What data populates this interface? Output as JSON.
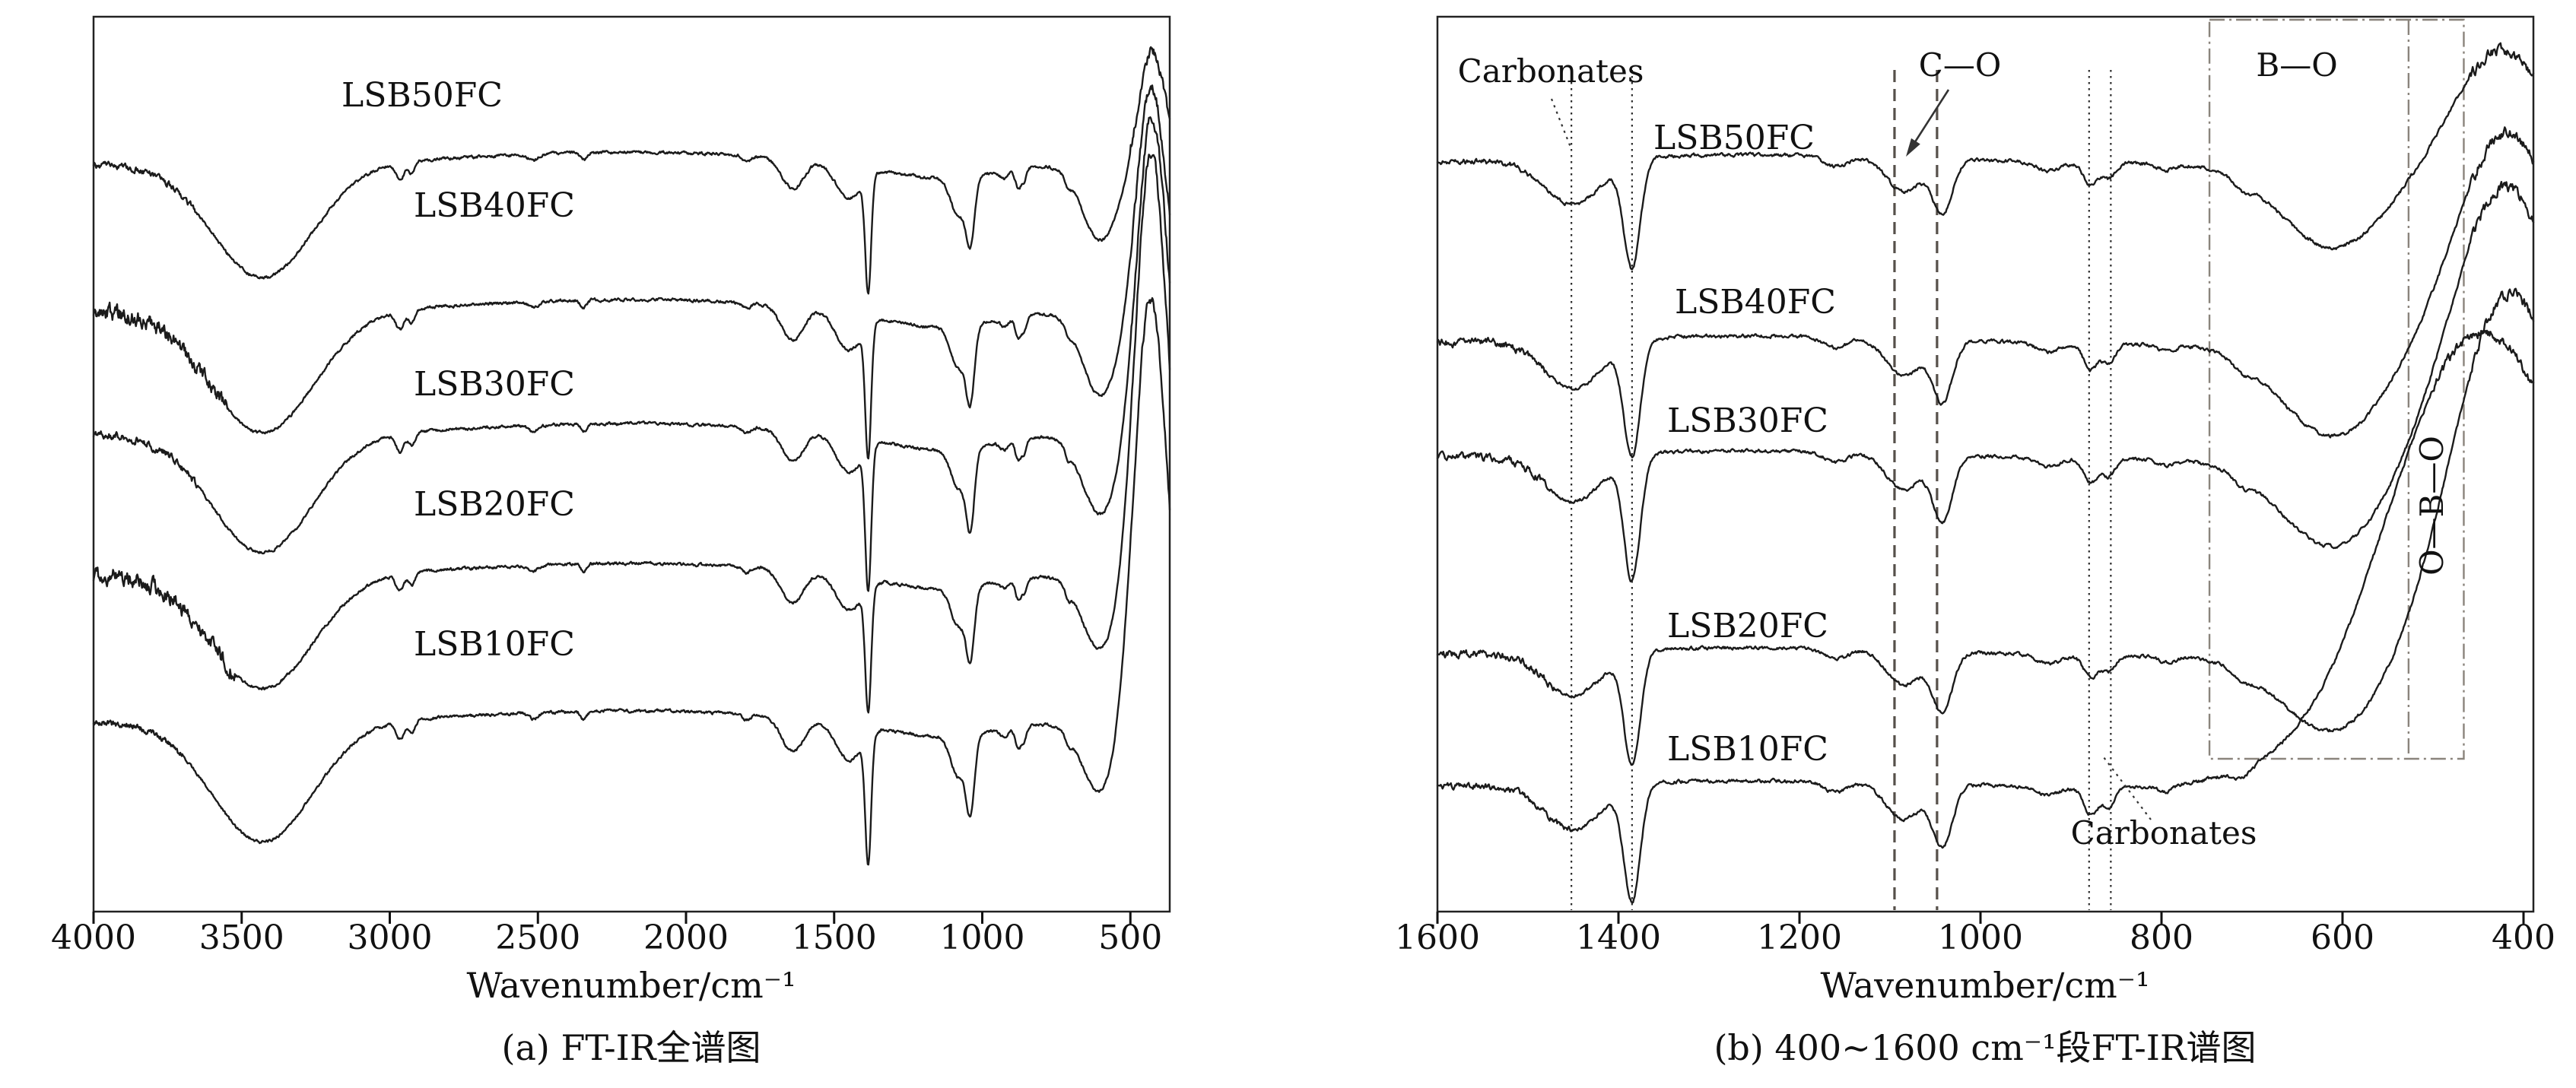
{
  "figure": {
    "background": "#ffffff",
    "line_color": "#1b1b1b",
    "description": "FT-IR transmittance spectra of LSB glass samples, five stacked curves per panel",
    "peak_format": "[center_wavenumber_cm-1, gaussian_width_cm-1, depth_display_units (positive = absorption dip downward, negative = upward rise)]"
  },
  "chart_data": [
    {
      "type": "line",
      "panel": "a",
      "caption": "(a) FT-IR全谱图",
      "xlabel": "Wavenumber/cm⁻¹",
      "x_ticks": [
        "4000",
        "3500",
        "3000",
        "2500",
        "2000",
        "1500",
        "1000",
        "500"
      ],
      "x_axis_range_cm1": [
        4000,
        370
      ],
      "y_axis": "Transmittance (arbitrary units, curves vertically offset, no y axis labels)",
      "grid": false,
      "legend": "labels placed above each curve",
      "series": [
        {
          "name": "LSB50FC",
          "seed": 1,
          "baseline": 216,
          "noise_base": 1.8,
          "noise_regions": [
            [
              4000,
              3650,
              4
            ],
            [
              500,
              368,
              7
            ]
          ],
          "peaks": [
            [
              3430,
              170,
              150
            ],
            [
              2965,
              14,
              22
            ],
            [
              2925,
              11,
              16
            ],
            [
              2515,
              16,
              8
            ],
            [
              2345,
              10,
              10
            ],
            [
              2200,
              500,
              -16
            ],
            [
              1795,
              14,
              8
            ],
            [
              1640,
              38,
              40
            ],
            [
              1450,
              45,
              45
            ],
            [
              1385,
              10,
              150
            ],
            [
              1150,
              180,
              20
            ],
            [
              1080,
              26,
              50
            ],
            [
              1040,
              14,
              80
            ],
            [
              925,
              15,
              10
            ],
            [
              878,
              10,
              26
            ],
            [
              858,
              8,
              16
            ],
            [
              710,
              10,
              12
            ],
            [
              600,
              62,
              100
            ],
            [
              428,
              45,
              -150
            ]
          ]
        },
        {
          "name": "LSB40FC",
          "seed": 2,
          "baseline": 410,
          "noise_base": 1.8,
          "noise_regions": [
            [
              4000,
              3550,
              10
            ],
            [
              500,
              368,
              7
            ]
          ],
          "peaks": [
            [
              3430,
              175,
              160
            ],
            [
              2965,
              14,
              24
            ],
            [
              2925,
              11,
              18
            ],
            [
              2515,
              16,
              8
            ],
            [
              2345,
              10,
              10
            ],
            [
              2200,
              500,
              -16
            ],
            [
              1795,
              14,
              8
            ],
            [
              1640,
              38,
              45
            ],
            [
              1450,
              45,
              50
            ],
            [
              1385,
              10,
              170
            ],
            [
              1150,
              180,
              22
            ],
            [
              1080,
              26,
              55
            ],
            [
              1040,
              14,
              90
            ],
            [
              925,
              15,
              10
            ],
            [
              878,
              10,
              28
            ],
            [
              858,
              8,
              18
            ],
            [
              710,
              10,
              12
            ],
            [
              600,
              62,
              110
            ],
            [
              430,
              48,
              -300
            ]
          ]
        },
        {
          "name": "LSB30FC",
          "seed": 3,
          "baseline": 572,
          "noise_base": 1.8,
          "noise_regions": [
            [
              4000,
              3650,
              5
            ],
            [
              500,
              368,
              7
            ]
          ],
          "peaks": [
            [
              3430,
              170,
              155
            ],
            [
              2965,
              14,
              23
            ],
            [
              2925,
              11,
              17
            ],
            [
              2515,
              16,
              8
            ],
            [
              2345,
              10,
              10
            ],
            [
              2200,
              500,
              -15
            ],
            [
              1795,
              14,
              8
            ],
            [
              1640,
              38,
              42
            ],
            [
              1450,
              45,
              48
            ],
            [
              1385,
              10,
              185
            ],
            [
              1150,
              180,
              21
            ],
            [
              1080,
              26,
              52
            ],
            [
              1040,
              14,
              95
            ],
            [
              925,
              15,
              10
            ],
            [
              878,
              10,
              27
            ],
            [
              858,
              8,
              17
            ],
            [
              710,
              10,
              12
            ],
            [
              600,
              62,
              105
            ],
            [
              428,
              50,
              -420
            ]
          ]
        },
        {
          "name": "LSB20FC",
          "seed": 4,
          "baseline": 756,
          "noise_base": 1.8,
          "noise_regions": [
            [
              4000,
              3520,
              10
            ],
            [
              500,
              368,
              7
            ]
          ],
          "peaks": [
            [
              3430,
              172,
              150
            ],
            [
              2965,
              14,
              22
            ],
            [
              2925,
              11,
              16
            ],
            [
              2515,
              16,
              8
            ],
            [
              2345,
              10,
              10
            ],
            [
              2200,
              500,
              -15
            ],
            [
              1795,
              14,
              8
            ],
            [
              1640,
              38,
              44
            ],
            [
              1450,
              45,
              46
            ],
            [
              1385,
              10,
              160
            ],
            [
              1150,
              180,
              20
            ],
            [
              1080,
              26,
              50
            ],
            [
              1040,
              14,
              85
            ],
            [
              925,
              15,
              10
            ],
            [
              878,
              10,
              26
            ],
            [
              858,
              8,
              16
            ],
            [
              710,
              10,
              12
            ],
            [
              600,
              62,
              100
            ],
            [
              430,
              52,
              -560
            ]
          ]
        },
        {
          "name": "LSB10FC",
          "seed": 5,
          "baseline": 950,
          "noise_base": 1.8,
          "noise_regions": [
            [
              4000,
              3700,
              4
            ],
            [
              500,
              368,
              7
            ]
          ],
          "peaks": [
            [
              3430,
              170,
              158
            ],
            [
              2965,
              14,
              23
            ],
            [
              2925,
              11,
              17
            ],
            [
              2515,
              16,
              8
            ],
            [
              2345,
              10,
              10
            ],
            [
              2200,
              500,
              -15
            ],
            [
              1795,
              14,
              8
            ],
            [
              1640,
              38,
              46
            ],
            [
              1450,
              45,
              50
            ],
            [
              1385,
              10,
              165
            ],
            [
              1150,
              180,
              20
            ],
            [
              1080,
              26,
              54
            ],
            [
              1040,
              14,
              92
            ],
            [
              925,
              15,
              10
            ],
            [
              878,
              10,
              28
            ],
            [
              858,
              8,
              18
            ],
            [
              710,
              10,
              12
            ],
            [
              600,
              62,
              95
            ],
            [
              432,
              55,
              -560
            ]
          ]
        }
      ]
    },
    {
      "type": "line",
      "panel": "b",
      "caption": "(b) 400~1600 cm⁻¹段FT-IR谱图",
      "xlabel": "Wavenumber/cm⁻¹",
      "x_ticks": [
        "1600",
        "1400",
        "1200",
        "1000",
        "800",
        "600",
        "400"
      ],
      "x_axis_range_cm1": [
        1600,
        390
      ],
      "y_axis": "Transmittance (arbitrary units, curves vertically offset, no y axis labels)",
      "grid": false,
      "legend": "labels placed above each curve",
      "annotation_labels": {
        "carbonates_top": "Carbonates",
        "c_o": "C—O",
        "b_o": "B—O",
        "o_b_o": "O—B—O",
        "carbonates_bottom": "Carbonates"
      },
      "annotations": [
        {
          "type": "vline",
          "wn": 1452,
          "style": "dotted"
        },
        {
          "type": "vline",
          "wn": 1385,
          "style": "dotted"
        },
        {
          "type": "vline",
          "wn": 1095,
          "style": "dashed"
        },
        {
          "type": "vline",
          "wn": 1048,
          "style": "dashed"
        },
        {
          "type": "vline",
          "wn": 880,
          "style": "dotted"
        },
        {
          "type": "vline",
          "wn": 856,
          "style": "dotted"
        },
        {
          "type": "vline",
          "wn": 527,
          "style": "dashdot",
          "y1": 26,
          "y2": 998
        },
        {
          "type": "box",
          "wn_from": 747,
          "wn_to": 466,
          "y1": 26,
          "y2": 998,
          "style": "dashdot"
        }
      ],
      "series": [
        {
          "name": "LSB50FC",
          "seed": 11,
          "baseline": 216,
          "noise_base": 2.2,
          "noise_regions": [
            [
              1600,
              1500,
              3.5
            ],
            [
              460,
              389,
              7
            ]
          ],
          "peaks": [
            [
              1450,
              32,
              60
            ],
            [
              1385,
              9,
              140
            ],
            [
              1250,
              200,
              -12
            ],
            [
              1160,
              13,
              14
            ],
            [
              1085,
              19,
              45
            ],
            [
              1042,
              11,
              70
            ],
            [
              925,
              13,
              12
            ],
            [
              878,
              8,
              30
            ],
            [
              858,
              7,
              20
            ],
            [
              795,
              9,
              8
            ],
            [
              710,
              10,
              12
            ],
            [
              610,
              58,
              110
            ],
            [
              425,
              50,
              -150
            ]
          ]
        },
        {
          "name": "LSB40FC",
          "seed": 12,
          "baseline": 454,
          "noise_base": 2.2,
          "noise_regions": [
            [
              1600,
              1480,
              5
            ],
            [
              460,
              389,
              7
            ]
          ],
          "peaks": [
            [
              1450,
              32,
              65
            ],
            [
              1385,
              9,
              150
            ],
            [
              1250,
              200,
              -12
            ],
            [
              1160,
              13,
              14
            ],
            [
              1085,
              19,
              50
            ],
            [
              1042,
              11,
              80
            ],
            [
              925,
              13,
              12
            ],
            [
              878,
              8,
              34
            ],
            [
              858,
              7,
              24
            ],
            [
              795,
              9,
              8
            ],
            [
              710,
              10,
              12
            ],
            [
              610,
              58,
              120
            ],
            [
              418,
              55,
              -280
            ]
          ]
        },
        {
          "name": "LSB30FC",
          "seed": 13,
          "baseline": 605,
          "noise_base": 2.2,
          "noise_regions": [
            [
              1600,
              1480,
              5
            ],
            [
              460,
              389,
              7
            ]
          ],
          "peaks": [
            [
              1450,
              32,
              62
            ],
            [
              1385,
              9,
              160
            ],
            [
              1250,
              200,
              -12
            ],
            [
              1160,
              13,
              14
            ],
            [
              1085,
              19,
              48
            ],
            [
              1042,
              11,
              85
            ],
            [
              925,
              13,
              12
            ],
            [
              878,
              8,
              32
            ],
            [
              858,
              7,
              22
            ],
            [
              795,
              9,
              8
            ],
            [
              710,
              10,
              12
            ],
            [
              610,
              58,
              115
            ],
            [
              420,
              58,
              -360
            ]
          ]
        },
        {
          "name": "LSB20FC",
          "seed": 14,
          "baseline": 864,
          "noise_base": 2.2,
          "noise_regions": [
            [
              1600,
              1470,
              5
            ],
            [
              460,
              389,
              7
            ]
          ],
          "peaks": [
            [
              1450,
              32,
              58
            ],
            [
              1385,
              9,
              145
            ],
            [
              1250,
              200,
              -12
            ],
            [
              1160,
              13,
              14
            ],
            [
              1085,
              19,
              46
            ],
            [
              1042,
              11,
              78
            ],
            [
              925,
              13,
              12
            ],
            [
              878,
              8,
              30
            ],
            [
              858,
              7,
              20
            ],
            [
              795,
              9,
              8
            ],
            [
              710,
              10,
              12
            ],
            [
              610,
              58,
              100
            ],
            [
              415,
              62,
              -480
            ]
          ]
        },
        {
          "name": "LSB10FC",
          "seed": 15,
          "baseline": 1037,
          "noise_base": 2.2,
          "noise_regions": [
            [
              1600,
              1450,
              4
            ],
            [
              500,
              389,
              6
            ]
          ],
          "peaks": [
            [
              1450,
              32,
              60
            ],
            [
              1385,
              9,
              150
            ],
            [
              1250,
              200,
              -10
            ],
            [
              1160,
              13,
              14
            ],
            [
              1085,
              19,
              48
            ],
            [
              1042,
              11,
              80
            ],
            [
              925,
              13,
              12
            ],
            [
              878,
              8,
              36
            ],
            [
              858,
              7,
              26
            ],
            [
              795,
              9,
              8
            ],
            [
              710,
              10,
              12
            ],
            [
              610,
              58,
              30
            ],
            [
              445,
              110,
              -600
            ]
          ]
        }
      ]
    }
  ]
}
